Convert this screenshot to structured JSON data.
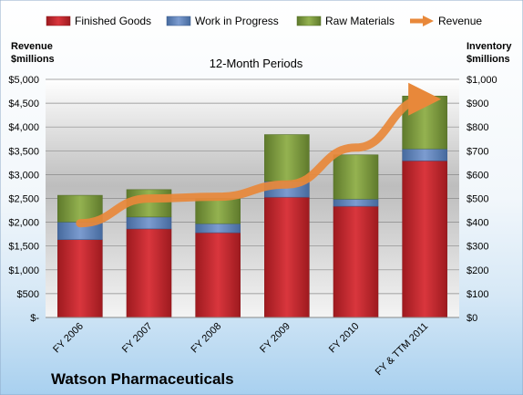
{
  "chart_data": {
    "type": "bar",
    "subtype": "stacked-bar-with-line",
    "title": "12-Month Periods",
    "company": "Watson Pharmaceuticals",
    "left_axis_label": [
      "Revenue",
      "$millions"
    ],
    "right_axis_label": [
      "Inventory",
      "$millions"
    ],
    "left_ticks": [
      "$-",
      "$500",
      "$1,000",
      "$1,500",
      "$2,000",
      "$2,500",
      "$3,000",
      "$3,500",
      "$4,000",
      "$4,500",
      "$5,000"
    ],
    "right_ticks": [
      "$0",
      "$100",
      "$200",
      "$300",
      "$400",
      "$500",
      "$600",
      "$700",
      "$800",
      "$900",
      "$1,000"
    ],
    "left_ylim": [
      0,
      5000
    ],
    "right_ylim": [
      0,
      1000
    ],
    "categories": [
      "FY 2006",
      "FY 2007",
      "FY 2008",
      "FY 2009",
      "FY 2010",
      "FY & TTM 2011"
    ],
    "series": [
      {
        "name": "Finished Goods",
        "axis": "right",
        "color": "#c0272d",
        "values": [
          327,
          372,
          356,
          505,
          467,
          658
        ]
      },
      {
        "name": "Work in Progress",
        "axis": "right",
        "color": "#5b7fb8",
        "values": [
          74,
          50,
          38,
          67,
          30,
          50
        ]
      },
      {
        "name": "Raw Materials",
        "axis": "right",
        "color": "#77963c",
        "values": [
          112,
          115,
          105,
          196,
          186,
          222
        ]
      },
      {
        "name": "Revenue",
        "axis": "left",
        "type": "line",
        "color": "#e8883a",
        "values": [
          1979,
          2497,
          2536,
          2793,
          3567,
          4584
        ]
      }
    ],
    "grid": true,
    "legend_position": "top"
  }
}
